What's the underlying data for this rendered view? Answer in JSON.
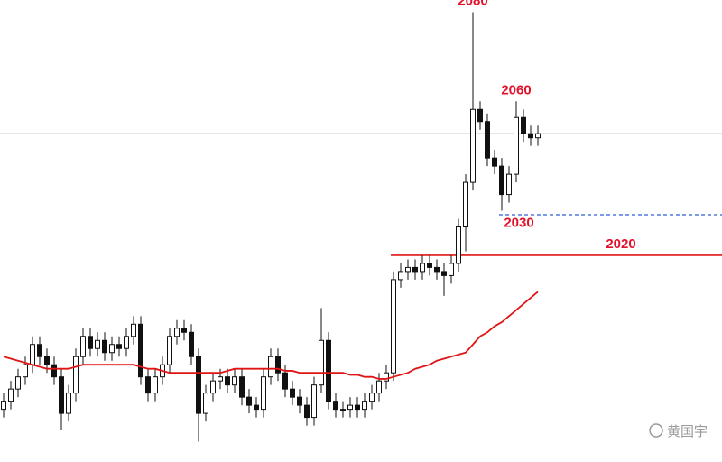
{
  "chart_data": {
    "type": "candlestick",
    "ylim": [
      1969,
      2083
    ],
    "open": [
      1982,
      1984,
      1987,
      1990,
      1993,
      1998,
      1995,
      1993,
      1990,
      1981,
      1986,
      1995,
      2000,
      1997,
      1999,
      1996,
      1998,
      1997,
      2000,
      2003,
      1990,
      1986,
      1990,
      1993,
      2000,
      2002,
      2001,
      1995,
      1981,
      1986,
      1989,
      1990,
      1988,
      1990,
      1985,
      1983,
      1982,
      1990,
      1995,
      1991,
      1987,
      1985,
      1983,
      1980,
      1988,
      1999,
      1984,
      1982,
      1982,
      1983,
      1982,
      1984,
      1986,
      1989,
      1991,
      2014,
      2016,
      2017,
      2016,
      2018,
      2017,
      2016,
      2015,
      2018,
      2027,
      2038,
      2056,
      2053,
      2044,
      2042,
      2035,
      2040,
      2054,
      2050,
      2049
    ],
    "high": [
      1986,
      1989,
      1992,
      1995,
      2000,
      2000,
      1997,
      1995,
      1992,
      1988,
      1997,
      2002,
      2002,
      2001,
      2001,
      2000,
      2000,
      2002,
      2005,
      2005,
      1992,
      1992,
      1995,
      2002,
      2004,
      2004,
      2003,
      1997,
      1988,
      1991,
      1992,
      1992,
      1992,
      1992,
      1987,
      1985,
      1992,
      1997,
      1997,
      1993,
      1989,
      1987,
      1985,
      1990,
      2007,
      2001,
      1986,
      1984,
      1985,
      1985,
      1986,
      1988,
      1991,
      1993,
      2016,
      2018,
      2019,
      2019,
      2020,
      2020,
      2019,
      2018,
      2020,
      2029,
      2040,
      2080,
      2058,
      2055,
      2046,
      2044,
      2042,
      2058,
      2056,
      2052,
      2052
    ],
    "low": [
      1980,
      1982,
      1985,
      1988,
      1991,
      1993,
      1991,
      1988,
      1977,
      1979,
      1984,
      1993,
      1995,
      1995,
      1994,
      1994,
      1995,
      1995,
      1998,
      1988,
      1984,
      1984,
      1988,
      1991,
      1998,
      1999,
      1993,
      1974,
      1979,
      1984,
      1987,
      1986,
      1986,
      1983,
      1981,
      1980,
      1980,
      1988,
      1989,
      1985,
      1983,
      1981,
      1978,
      1978,
      1986,
      1982,
      1980,
      1980,
      1980,
      1980,
      1980,
      1982,
      1984,
      1987,
      1989,
      2012,
      2014,
      2014,
      2014,
      2015,
      2014,
      2010,
      2013,
      2016,
      2021,
      2036,
      2051,
      2042,
      2040,
      2031,
      2033,
      2038,
      2048,
      2047,
      2047
    ],
    "close": [
      1984,
      1987,
      1990,
      1993,
      1998,
      1995,
      1993,
      1990,
      1981,
      1986,
      1995,
      2000,
      1997,
      1999,
      1996,
      1998,
      1997,
      2000,
      2003,
      1990,
      1986,
      1990,
      1993,
      2000,
      2002,
      2001,
      1995,
      1981,
      1986,
      1989,
      1990,
      1988,
      1990,
      1985,
      1983,
      1982,
      1990,
      1995,
      1991,
      1987,
      1985,
      1983,
      1980,
      1988,
      1999,
      1984,
      1982,
      1982,
      1983,
      1982,
      1984,
      1986,
      1989,
      1991,
      2014,
      2016,
      2017,
      2016,
      2018,
      2017,
      2016,
      2015,
      2018,
      2027,
      2038,
      2056,
      2053,
      2044,
      2042,
      2035,
      2040,
      2054,
      2050,
      2049,
      2050
    ],
    "candle_color": "#111111",
    "moving_average": {
      "color": "#e01414",
      "values": [
        1995,
        1994.5,
        1994,
        1993.5,
        1993,
        1992.5,
        1992,
        1992,
        1992,
        1992,
        1992.5,
        1993,
        1993,
        1993,
        1993,
        1993,
        1993,
        1993,
        1993,
        1992.5,
        1992,
        1992,
        1991.5,
        1991,
        1991,
        1991,
        1991,
        1991,
        1991,
        1991,
        1991,
        1991.5,
        1992,
        1992,
        1992,
        1992,
        1992,
        1992,
        1992,
        1991.5,
        1991.5,
        1991,
        1991,
        1991,
        1991,
        1991,
        1991,
        1991,
        1990.5,
        1990.5,
        1990,
        1990,
        1989.5,
        1989.5,
        1990,
        1990.5,
        1991,
        1992,
        1992.5,
        1993,
        1994,
        1994.5,
        1995,
        1995.5,
        1996,
        1998,
        2000,
        2001,
        2002.5,
        2003.5,
        2005,
        2006.5,
        2008,
        2009.5,
        2011
      ]
    },
    "price_line": {
      "value": 2050,
      "color": "#999999"
    },
    "levels": [
      {
        "label": "2080",
        "value": 2080
      },
      {
        "label": "2060",
        "value": 2060
      },
      {
        "label": "2030",
        "value": 2030,
        "line": "dashed",
        "color": "#2f5fd0"
      },
      {
        "label": "2020",
        "value": 2020,
        "line": "solid",
        "color": "#e01414"
      }
    ],
    "watermark": "黄国宇"
  }
}
